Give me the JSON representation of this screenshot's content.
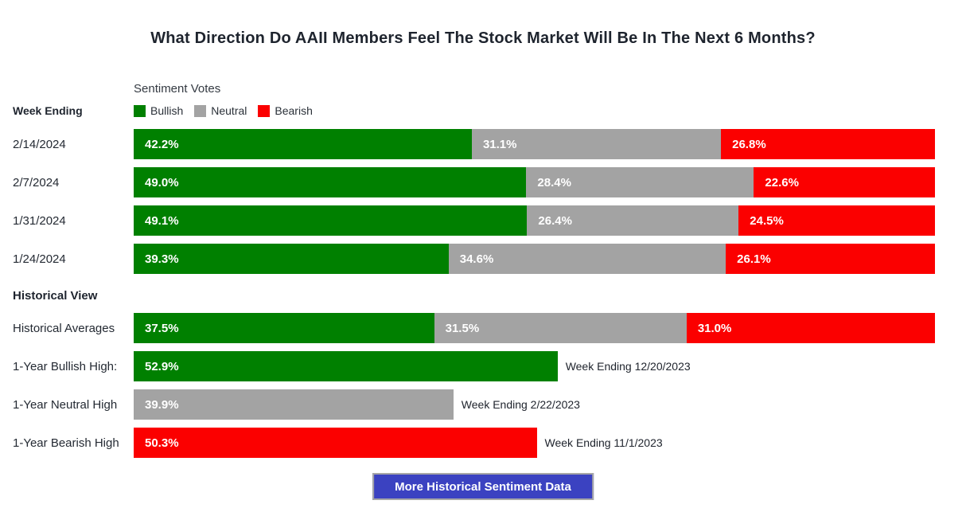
{
  "title": "What Direction Do AAII Members Feel The Stock Market Will Be In The Next 6 Months?",
  "left_column": {
    "week_ending_label": "Week Ending",
    "historical_view_label": "Historical View"
  },
  "legend": {
    "title": "Sentiment Votes",
    "items": [
      {
        "key": "bullish",
        "label": "Bullish",
        "color": "#008000"
      },
      {
        "key": "neutral",
        "label": "Neutral",
        "color": "#a3a3a3"
      },
      {
        "key": "bearish",
        "label": "Bearish",
        "color": "#fb0000"
      }
    ]
  },
  "colors": {
    "bullish": "#008000",
    "neutral": "#a3a3a3",
    "bearish": "#fb0000",
    "button_bg": "#3b42c1",
    "text_dark": "#20252e"
  },
  "chart_data": {
    "type": "bar",
    "orientation": "horizontal",
    "stacked": true,
    "unit": "%",
    "xlim": [
      0,
      100
    ],
    "series_names": [
      "Bullish",
      "Neutral",
      "Bearish"
    ],
    "weekly_rows": [
      {
        "label": "2/14/2024",
        "bullish": 42.2,
        "neutral": 31.1,
        "bearish": 26.8
      },
      {
        "label": "2/7/2024",
        "bullish": 49.0,
        "neutral": 28.4,
        "bearish": 22.6
      },
      {
        "label": "1/31/2024",
        "bullish": 49.1,
        "neutral": 26.4,
        "bearish": 24.5
      },
      {
        "label": "1/24/2024",
        "bullish": 39.3,
        "neutral": 34.6,
        "bearish": 26.1
      }
    ],
    "historical_rows": [
      {
        "label": "Historical Averages",
        "kind": "stacked",
        "bullish": 37.5,
        "neutral": 31.5,
        "bearish": 31.0
      },
      {
        "label": "1-Year Bullish High:",
        "kind": "single",
        "series": "bullish",
        "value": 52.9,
        "annotation": "Week Ending 12/20/2023"
      },
      {
        "label": "1-Year Neutral High",
        "kind": "single",
        "series": "neutral",
        "value": 39.9,
        "annotation": "Week Ending 2/22/2023"
      },
      {
        "label": "1-Year Bearish High",
        "kind": "single",
        "series": "bearish",
        "value": 50.3,
        "annotation": "Week Ending 11/1/2023"
      }
    ]
  },
  "button": {
    "label": "More Historical Sentiment Data"
  }
}
